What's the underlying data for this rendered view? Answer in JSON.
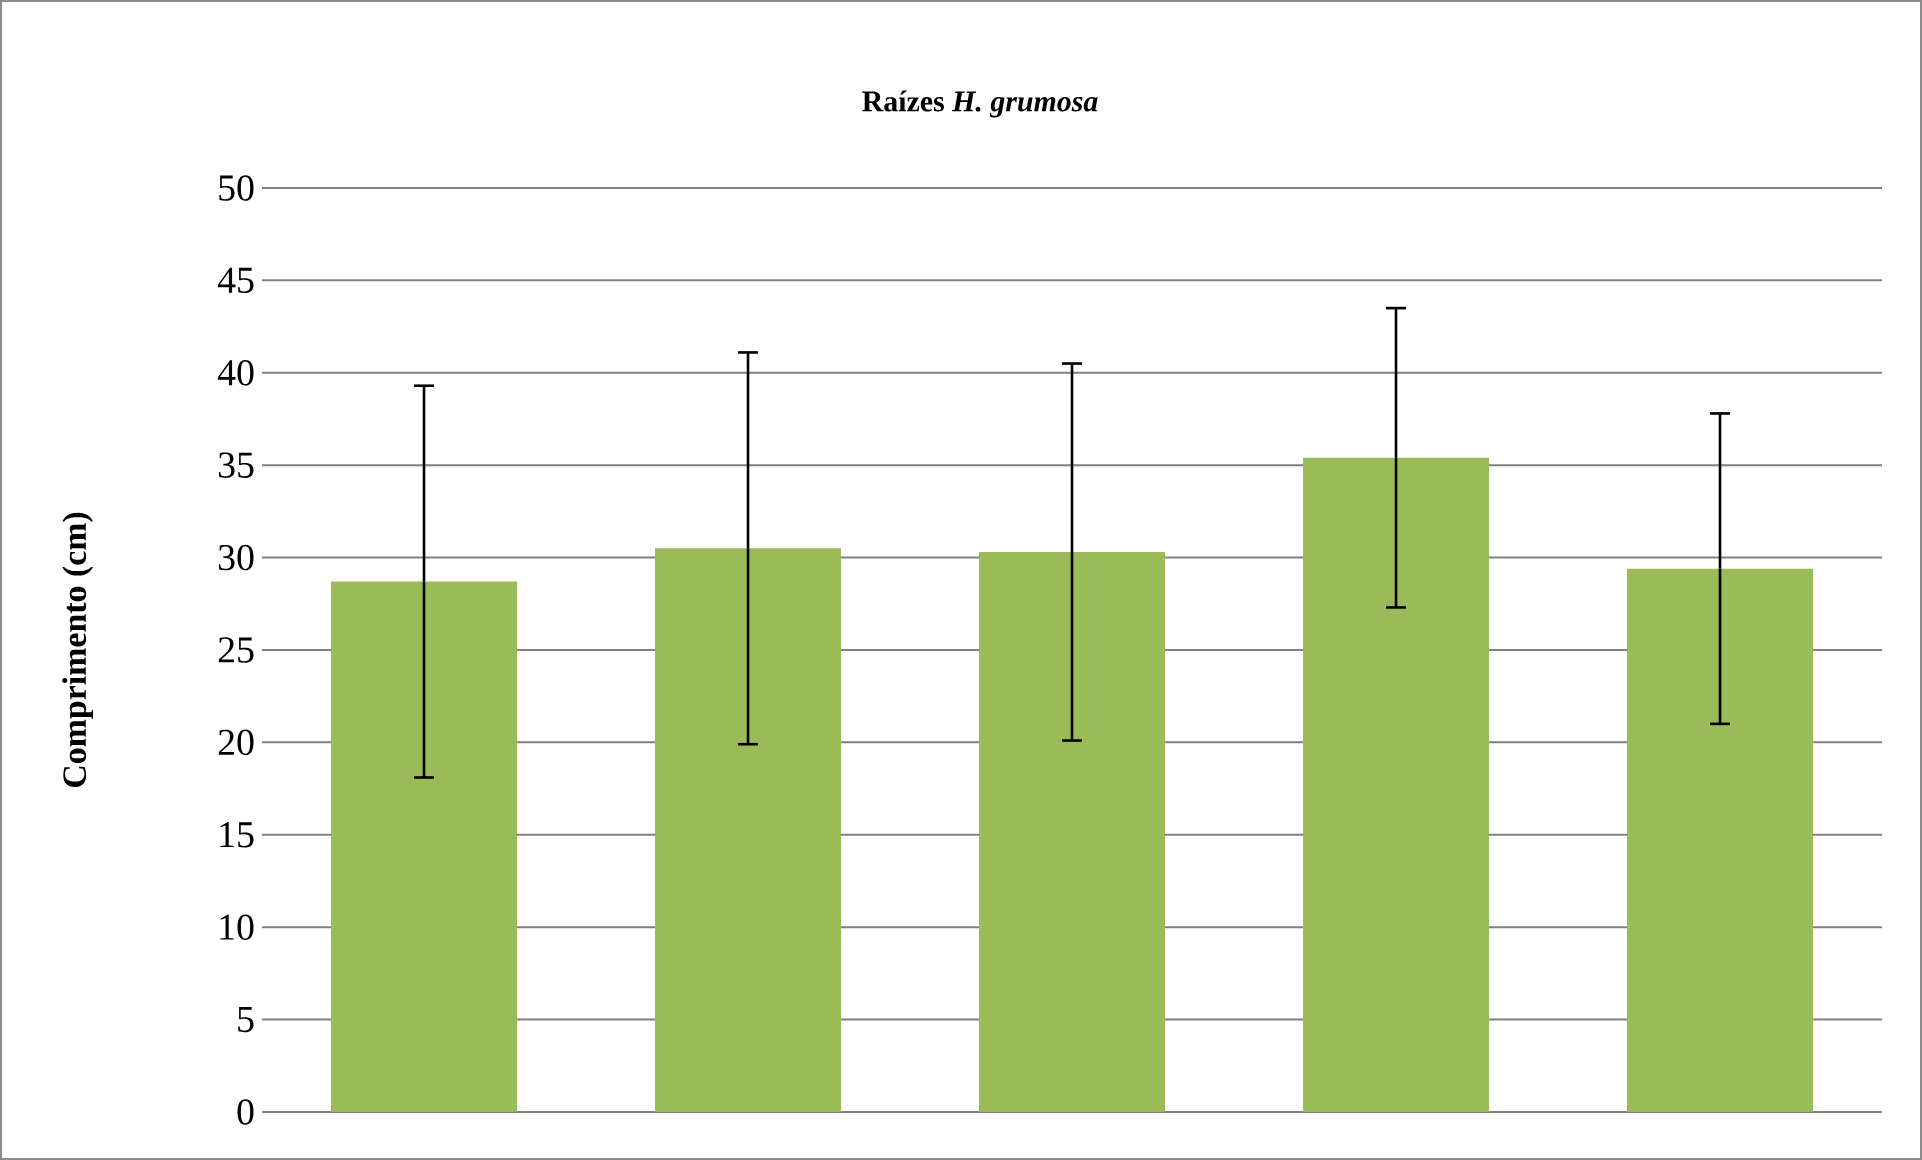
{
  "chart_data": {
    "type": "bar",
    "title": "Raízes *H. grumosa*",
    "ylabel": "Comprimento (cm)",
    "categories": [
      null,
      null,
      null,
      null,
      null
    ],
    "values": [
      28.7,
      30.5,
      30.3,
      35.4,
      29.4
    ],
    "errors": [
      10.6,
      10.6,
      10.2,
      8.1,
      8.4
    ],
    "color": "#9bbb59",
    "ylim": [
      0,
      50
    ],
    "yticks": [
      0,
      5,
      10,
      15,
      20,
      25,
      30,
      35,
      40,
      45,
      50
    ],
    "grid": "y",
    "tick_labels": "y"
  }
}
